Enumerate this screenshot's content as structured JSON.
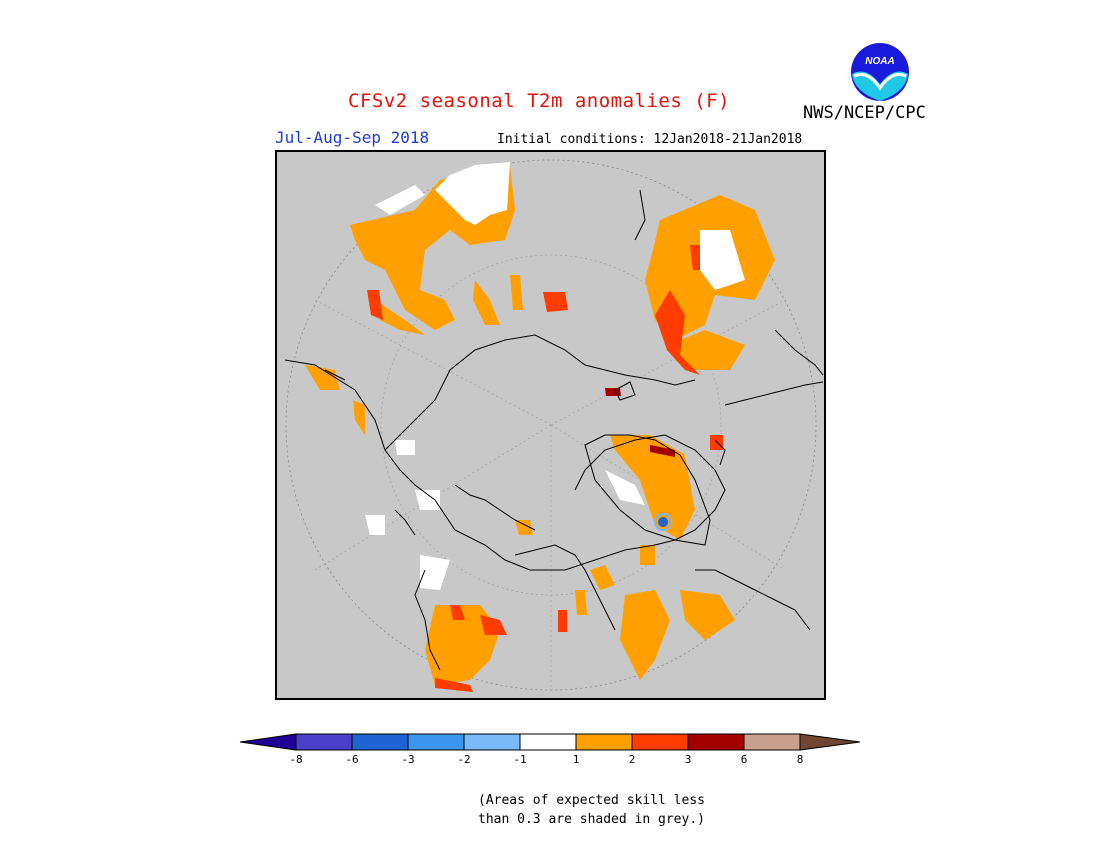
{
  "header": {
    "title": "CFSv2 seasonal T2m anomalies (F)",
    "agency": "NWS/NCEP/CPC",
    "logo_text": "NOAA",
    "period": "Jul-Aug-Sep 2018",
    "initial_conditions": "Initial conditions: 12Jan2018-21Jan2018"
  },
  "legend": {
    "colors": [
      "#1e0096",
      "#4b3ec8",
      "#1e64d2",
      "#3c96f0",
      "#78b9fa",
      "#ffffff",
      "#ffa000",
      "#ff3c00",
      "#a50000",
      "#c8a08c",
      "#6e4632"
    ],
    "ticks": [
      "-8",
      "-6",
      "-3",
      "-2",
      "-1",
      "1",
      "2",
      "3",
      "6",
      "8"
    ],
    "note_line1": "(Areas of expected skill less",
    "note_line2": "than 0.3 are shaded in grey.)"
  },
  "map": {
    "projection": "north-polar-stereographic",
    "background_color": "#c8c8c8",
    "coastline_color": "#000000"
  }
}
